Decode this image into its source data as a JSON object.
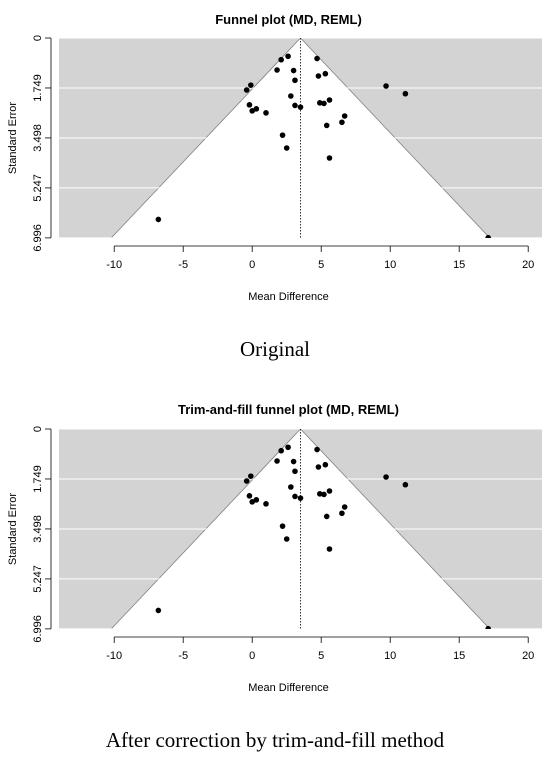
{
  "chart_data": [
    {
      "type": "scatter",
      "subtype": "funnel",
      "title": "Funnel plot (MD, REML)",
      "xlabel": "Mean Difference",
      "ylabel": "Standard Error",
      "caption": "Original",
      "xlim": [
        -14,
        21
      ],
      "ylim": [
        0,
        7.0
      ],
      "y_reversed": true,
      "xticks": [
        -10,
        -5,
        0,
        5,
        10,
        15,
        20
      ],
      "xtick_labels": [
        "-10",
        "-5",
        "0",
        "5",
        "10",
        "15",
        "20"
      ],
      "yticks": [
        0,
        1.749,
        3.498,
        5.247,
        6.996
      ],
      "ytick_labels": [
        "0",
        "1.749",
        "3.498",
        "5.247",
        "6.996"
      ],
      "pooled_estimate": 3.5,
      "funnel_z": 1.96,
      "grid": true,
      "background_color": "#d3d3d3",
      "funnel_color": "#ffffff",
      "points": [
        {
          "x": 1.8,
          "y": 1.12
        },
        {
          "x": 2.1,
          "y": 0.76
        },
        {
          "x": 2.6,
          "y": 0.64
        },
        {
          "x": 3.0,
          "y": 1.14
        },
        {
          "x": 3.1,
          "y": 1.48
        },
        {
          "x": 2.8,
          "y": 2.03
        },
        {
          "x": 3.1,
          "y": 2.36
        },
        {
          "x": 3.5,
          "y": 2.42
        },
        {
          "x": 4.7,
          "y": 0.72
        },
        {
          "x": 4.8,
          "y": 1.33
        },
        {
          "x": 5.3,
          "y": 1.25
        },
        {
          "x": 4.9,
          "y": 2.27
        },
        {
          "x": 5.2,
          "y": 2.29
        },
        {
          "x": 5.6,
          "y": 2.17
        },
        {
          "x": 5.4,
          "y": 3.06
        },
        {
          "x": 6.5,
          "y": 2.95
        },
        {
          "x": 6.7,
          "y": 2.73
        },
        {
          "x": 2.2,
          "y": 3.4
        },
        {
          "x": 2.5,
          "y": 3.85
        },
        {
          "x": 5.6,
          "y": 4.2
        },
        {
          "x": -0.4,
          "y": 1.82
        },
        {
          "x": -0.1,
          "y": 1.65
        },
        {
          "x": -0.2,
          "y": 2.34
        },
        {
          "x": 0.0,
          "y": 2.55
        },
        {
          "x": 0.3,
          "y": 2.48
        },
        {
          "x": 1.0,
          "y": 2.62
        },
        {
          "x": 9.7,
          "y": 1.68
        },
        {
          "x": 11.1,
          "y": 1.95
        },
        {
          "x": -6.8,
          "y": 6.35
        },
        {
          "x": 17.1,
          "y": 6.99
        }
      ]
    },
    {
      "type": "scatter",
      "subtype": "funnel",
      "title": "Trim-and-fill funnel plot (MD, REML)",
      "xlabel": "Mean Difference",
      "ylabel": "Standard Error",
      "caption": "After correction by trim-and-fill method",
      "xlim": [
        -14,
        21
      ],
      "ylim": [
        0,
        7.0
      ],
      "y_reversed": true,
      "xticks": [
        -10,
        -5,
        0,
        5,
        10,
        15,
        20
      ],
      "xtick_labels": [
        "-10",
        "-5",
        "0",
        "5",
        "10",
        "15",
        "20"
      ],
      "yticks": [
        0,
        1.749,
        3.498,
        5.247,
        6.996
      ],
      "ytick_labels": [
        "0",
        "1.749",
        "3.498",
        "5.247",
        "6.996"
      ],
      "pooled_estimate": 3.5,
      "funnel_z": 1.96,
      "grid": true,
      "background_color": "#d3d3d3",
      "funnel_color": "#ffffff",
      "points": [
        {
          "x": 1.8,
          "y": 1.12
        },
        {
          "x": 2.1,
          "y": 0.76
        },
        {
          "x": 2.6,
          "y": 0.64
        },
        {
          "x": 3.0,
          "y": 1.14
        },
        {
          "x": 3.1,
          "y": 1.48
        },
        {
          "x": 2.8,
          "y": 2.03
        },
        {
          "x": 3.1,
          "y": 2.36
        },
        {
          "x": 3.5,
          "y": 2.42
        },
        {
          "x": 4.7,
          "y": 0.72
        },
        {
          "x": 4.8,
          "y": 1.33
        },
        {
          "x": 5.3,
          "y": 1.25
        },
        {
          "x": 4.9,
          "y": 2.27
        },
        {
          "x": 5.2,
          "y": 2.29
        },
        {
          "x": 5.6,
          "y": 2.17
        },
        {
          "x": 5.4,
          "y": 3.06
        },
        {
          "x": 6.5,
          "y": 2.95
        },
        {
          "x": 6.7,
          "y": 2.73
        },
        {
          "x": 2.2,
          "y": 3.4
        },
        {
          "x": 2.5,
          "y": 3.85
        },
        {
          "x": 5.6,
          "y": 4.2
        },
        {
          "x": -0.4,
          "y": 1.82
        },
        {
          "x": -0.1,
          "y": 1.65
        },
        {
          "x": -0.2,
          "y": 2.34
        },
        {
          "x": 0.0,
          "y": 2.55
        },
        {
          "x": 0.3,
          "y": 2.48
        },
        {
          "x": 1.0,
          "y": 2.62
        },
        {
          "x": 9.7,
          "y": 1.68
        },
        {
          "x": 11.1,
          "y": 1.95
        },
        {
          "x": -6.8,
          "y": 6.35
        },
        {
          "x": 17.1,
          "y": 6.99
        }
      ]
    }
  ]
}
